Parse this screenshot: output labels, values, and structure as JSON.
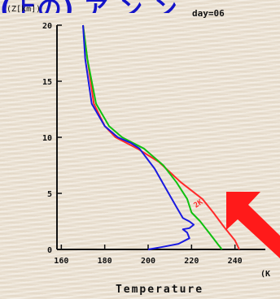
{
  "header_fragment": "(上の) ア ン ン",
  "chart_data": {
    "type": "line",
    "xlabel": "Temperature",
    "ylabel": "(Z[km])",
    "x_unit_fragment": "(K",
    "day_label": "day=06",
    "xlim": [
      158,
      254
    ],
    "ylim": [
      0,
      20
    ],
    "x_ticks": [
      160,
      180,
      200,
      220,
      240
    ],
    "x_tick_labels": [
      "160",
      "180",
      "200",
      "220",
      "240"
    ],
    "y_ticks": [
      0,
      5,
      10,
      15,
      20
    ],
    "y_tick_labels": [
      "0",
      "5",
      "10",
      "15",
      "20"
    ],
    "series": [
      {
        "color": "#ff2a2a",
        "points": [
          [
            170,
            20
          ],
          [
            172,
            17
          ],
          [
            175,
            13
          ],
          [
            180,
            11
          ],
          [
            185,
            10
          ],
          [
            195,
            9
          ],
          [
            205,
            7.8
          ],
          [
            215,
            6
          ],
          [
            225,
            4.5
          ],
          [
            230,
            3.3
          ],
          [
            235,
            2
          ],
          [
            240,
            0.8
          ],
          [
            242,
            0
          ]
        ]
      },
      {
        "color": "#10c010",
        "points": [
          [
            170,
            20
          ],
          [
            172,
            17
          ],
          [
            176,
            13
          ],
          [
            182,
            11
          ],
          [
            188,
            10
          ],
          [
            198,
            9
          ],
          [
            207,
            7.5
          ],
          [
            213,
            6
          ],
          [
            218,
            4.5
          ],
          [
            220,
            3.3
          ],
          [
            224,
            2.5
          ],
          [
            228,
            1.5
          ],
          [
            232,
            0.5
          ],
          [
            234,
            0
          ]
        ]
      },
      {
        "color": "#1a1ae0",
        "points": [
          [
            170,
            20
          ],
          [
            171,
            17
          ],
          [
            174,
            13
          ],
          [
            180,
            11
          ],
          [
            186,
            10
          ],
          [
            192,
            9.5
          ],
          [
            196,
            9
          ],
          [
            203,
            7.2
          ],
          [
            208,
            5.5
          ],
          [
            213,
            3.8
          ],
          [
            216,
            2.8
          ],
          [
            219,
            2.5
          ],
          [
            221,
            2.2
          ],
          [
            219,
            1.9
          ],
          [
            216,
            1.8
          ],
          [
            218,
            1.5
          ],
          [
            219,
            1.0
          ],
          [
            214,
            0.5
          ],
          [
            206,
            0.2
          ],
          [
            200,
            0
          ]
        ]
      }
    ],
    "annotation": {
      "text": "2K",
      "color": "#ff2a2a",
      "x": 222,
      "y": 3.7
    }
  },
  "arrow": {
    "color": "#ff1a1a"
  }
}
